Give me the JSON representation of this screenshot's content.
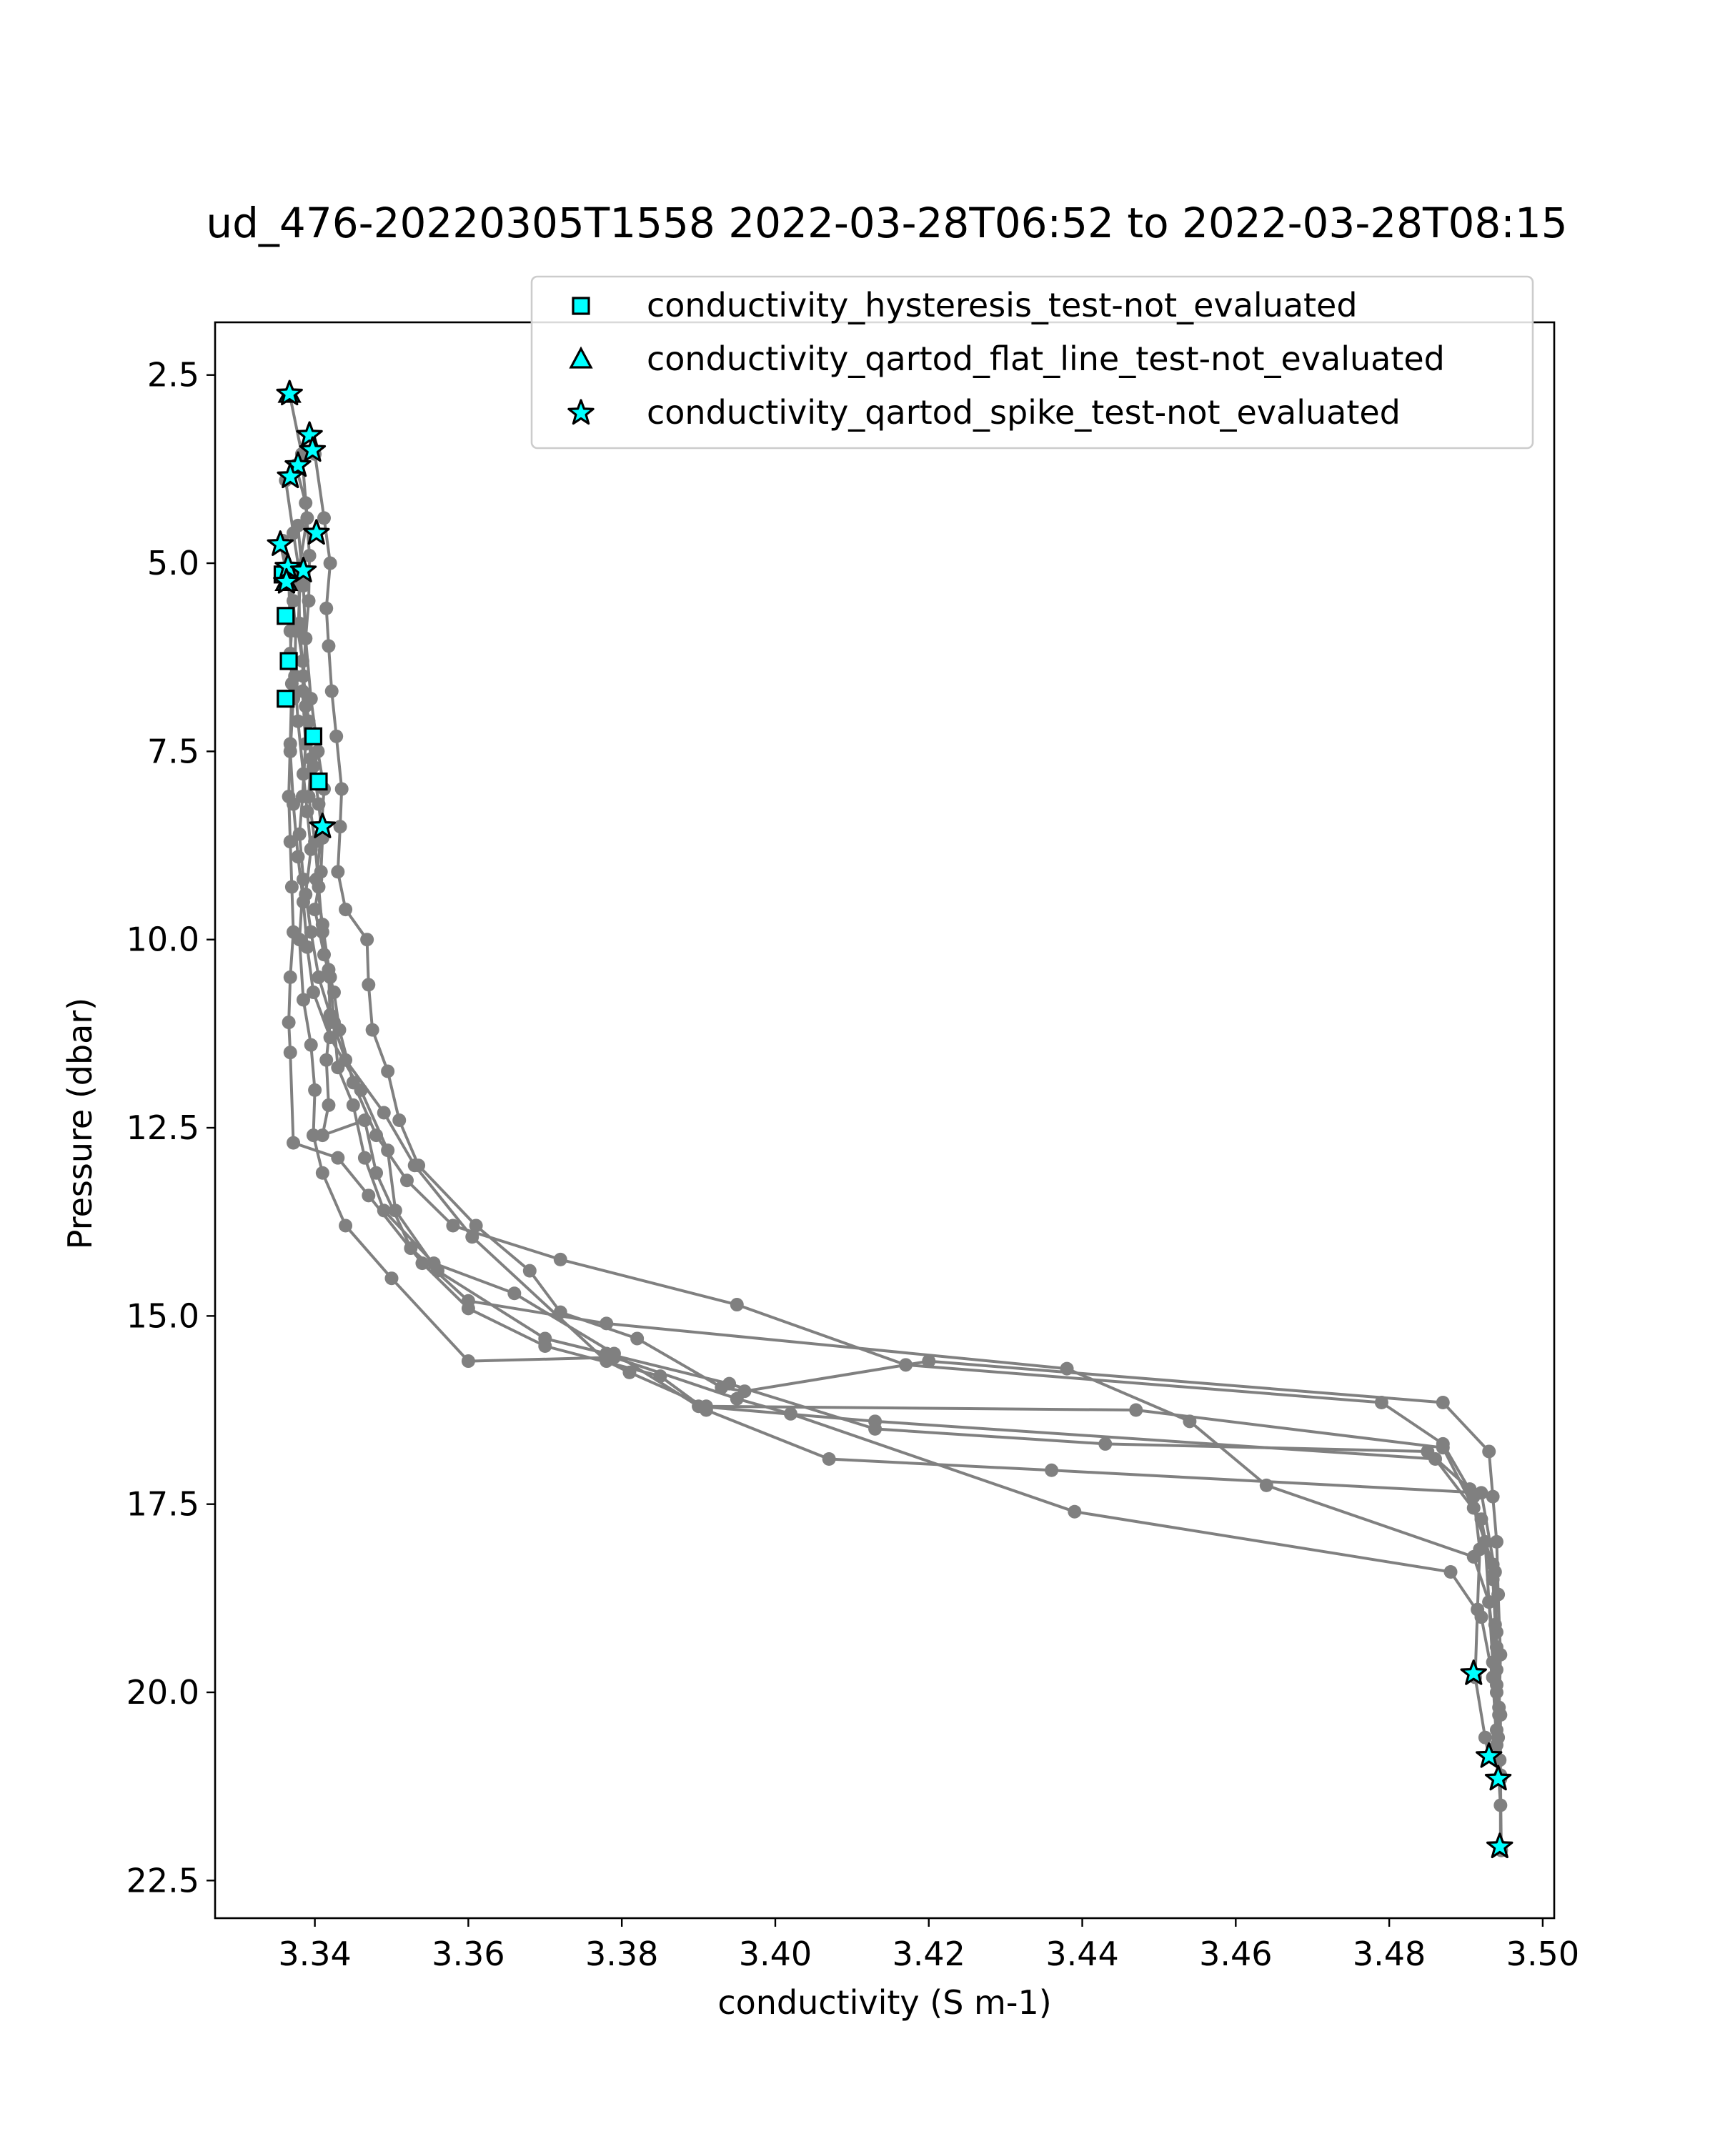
{
  "chart_data": {
    "type": "scatter",
    "title": "ud_476-20220305T1558 2022-03-28T06:52 to 2022-03-28T08:15",
    "xlabel": "conductivity (S m-1)",
    "ylabel": "Pressure (dbar)",
    "xlim": [
      3.327,
      3.5015
    ],
    "ylim": [
      23.0,
      1.8
    ],
    "y_inverted": true,
    "grid": false,
    "legend_position": "upper right",
    "x_ticks": [
      "3.34",
      "3.36",
      "3.38",
      "3.40",
      "3.42",
      "3.44",
      "3.46",
      "3.48",
      "3.50"
    ],
    "y_ticks": [
      "2.5",
      "5.0",
      "7.5",
      "10.0",
      "12.5",
      "15.0",
      "17.5",
      "20.0",
      "22.5"
    ],
    "profile_color": "#808080",
    "profiles": [
      [
        [
          3.3367,
          2.75
        ],
        [
          3.3383,
          3.55
        ],
        [
          3.339,
          4.4
        ],
        [
          3.3379,
          5.1
        ],
        [
          3.338,
          5.8
        ],
        [
          3.3385,
          6.5
        ],
        [
          3.3392,
          7.1
        ],
        [
          3.3398,
          7.7
        ],
        [
          3.3405,
          8.2
        ],
        [
          3.341,
          8.65
        ],
        [
          3.3408,
          9.1
        ],
        [
          3.34,
          9.6
        ],
        [
          3.3412,
          10.2
        ],
        [
          3.3425,
          10.7
        ],
        [
          3.3432,
          11.2
        ],
        [
          3.345,
          11.9
        ],
        [
          3.348,
          12.6
        ],
        [
          3.352,
          13.2
        ],
        [
          3.358,
          13.8
        ],
        [
          3.372,
          14.25
        ],
        [
          3.395,
          14.85
        ],
        [
          3.417,
          15.65
        ],
        [
          3.479,
          16.15
        ],
        [
          3.487,
          16.7
        ],
        [
          3.491,
          17.4
        ],
        [
          3.4918,
          18.1
        ],
        [
          3.4915,
          18.9
        ],
        [
          3.4912,
          19.8
        ],
        [
          3.4925,
          20.6
        ],
        [
          3.493,
          20.85
        ]
      ],
      [
        [
          3.34,
          3.55
        ],
        [
          3.3412,
          4.4
        ],
        [
          3.342,
          5.0
        ],
        [
          3.3415,
          5.6
        ],
        [
          3.3418,
          6.1
        ],
        [
          3.3422,
          6.7
        ],
        [
          3.3428,
          7.3
        ],
        [
          3.3435,
          8.0
        ],
        [
          3.3433,
          8.5
        ],
        [
          3.343,
          9.1
        ],
        [
          3.344,
          9.6
        ],
        [
          3.3468,
          10.0
        ],
        [
          3.347,
          10.6
        ],
        [
          3.3475,
          11.2
        ],
        [
          3.3495,
          11.75
        ],
        [
          3.351,
          12.4
        ],
        [
          3.3535,
          13.0
        ],
        [
          3.361,
          13.8
        ],
        [
          3.368,
          14.4
        ],
        [
          3.372,
          14.95
        ],
        [
          3.382,
          15.3
        ],
        [
          3.393,
          15.95
        ],
        [
          3.396,
          16.0
        ],
        [
          3.42,
          15.6
        ],
        [
          3.487,
          16.15
        ],
        [
          3.493,
          16.8
        ],
        [
          3.4935,
          17.4
        ],
        [
          3.494,
          18.0
        ],
        [
          3.4942,
          18.7
        ],
        [
          3.4945,
          19.5
        ],
        [
          3.4943,
          20.3
        ],
        [
          3.4945,
          21.15
        ]
      ],
      [
        [
          3.3362,
          3.9
        ],
        [
          3.3372,
          4.6
        ],
        [
          3.3381,
          5.2
        ],
        [
          3.3378,
          5.9
        ],
        [
          3.3384,
          6.3
        ],
        [
          3.3388,
          6.9
        ],
        [
          3.3395,
          7.6
        ],
        [
          3.3392,
          8.1
        ],
        [
          3.34,
          8.7
        ],
        [
          3.3405,
          9.3
        ],
        [
          3.341,
          9.9
        ],
        [
          3.3418,
          10.4
        ],
        [
          3.342,
          11.1
        ],
        [
          3.3415,
          11.6
        ],
        [
          3.3418,
          12.2
        ],
        [
          3.341,
          12.6
        ],
        [
          3.3465,
          12.4
        ],
        [
          3.348,
          13.1
        ],
        [
          3.3525,
          14.1
        ],
        [
          3.36,
          14.8
        ],
        [
          3.378,
          15.1
        ],
        [
          3.438,
          15.7
        ],
        [
          3.454,
          16.4
        ],
        [
          3.464,
          17.25
        ],
        [
          3.491,
          18.2
        ],
        [
          3.493,
          18.8
        ],
        [
          3.494,
          19.7
        ],
        [
          3.4945,
          20.3
        ],
        [
          3.4945,
          21.1
        ],
        [
          3.4946,
          22.1
        ]
      ],
      [
        [
          3.3358,
          4.7
        ],
        [
          3.337,
          5.3
        ],
        [
          3.3375,
          5.9
        ],
        [
          3.3374,
          6.5
        ],
        [
          3.3378,
          7.1
        ],
        [
          3.3385,
          7.8
        ],
        [
          3.339,
          8.3
        ],
        [
          3.3395,
          8.8
        ],
        [
          3.3388,
          9.4
        ],
        [
          3.3395,
          9.9
        ],
        [
          3.3405,
          10.5
        ],
        [
          3.342,
          11.0
        ],
        [
          3.344,
          11.6
        ],
        [
          3.349,
          12.3
        ],
        [
          3.353,
          13.0
        ],
        [
          3.3605,
          13.95
        ],
        [
          3.378,
          15.6
        ],
        [
          3.381,
          15.75
        ],
        [
          3.391,
          16.2
        ],
        [
          3.447,
          16.25
        ],
        [
          3.487,
          16.75
        ],
        [
          3.491,
          17.55
        ],
        [
          3.4935,
          18.3
        ],
        [
          3.4938,
          19.1
        ],
        [
          3.494,
          19.9
        ],
        [
          3.4942,
          20.6
        ]
      ],
      [
        [
          3.3375,
          3.7
        ],
        [
          3.3388,
          4.2
        ],
        [
          3.3393,
          4.9
        ],
        [
          3.3392,
          5.5
        ],
        [
          3.3388,
          6.0
        ],
        [
          3.3395,
          6.8
        ],
        [
          3.3404,
          7.5
        ],
        [
          3.3412,
          8.0
        ],
        [
          3.3408,
          8.6
        ],
        [
          3.3402,
          9.2
        ],
        [
          3.341,
          9.8
        ],
        [
          3.342,
          10.5
        ],
        [
          3.3425,
          11.1
        ],
        [
          3.343,
          11.7
        ],
        [
          3.345,
          12.2
        ],
        [
          3.3465,
          12.9
        ],
        [
          3.349,
          13.6
        ],
        [
          3.3555,
          14.3
        ],
        [
          3.366,
          14.7
        ],
        [
          3.379,
          15.5
        ],
        [
          3.39,
          16.2
        ],
        [
          3.413,
          16.4
        ],
        [
          3.486,
          16.9
        ],
        [
          3.492,
          17.7
        ],
        [
          3.4935,
          18.5
        ],
        [
          3.494,
          19.4
        ],
        [
          3.4943,
          20.2
        ],
        [
          3.4944,
          20.9
        ]
      ],
      [
        [
          3.3355,
          4.75
        ],
        [
          3.3372,
          5.5
        ],
        [
          3.3368,
          6.2
        ],
        [
          3.3372,
          6.8
        ],
        [
          3.3368,
          7.5
        ],
        [
          3.3372,
          8.2
        ],
        [
          3.3378,
          8.9
        ],
        [
          3.3385,
          9.5
        ],
        [
          3.339,
          10.1
        ],
        [
          3.3398,
          10.7
        ],
        [
          3.342,
          11.3
        ],
        [
          3.346,
          12.0
        ],
        [
          3.3495,
          12.8
        ],
        [
          3.3505,
          13.6
        ],
        [
          3.356,
          14.4
        ],
        [
          3.37,
          15.3
        ],
        [
          3.378,
          15.5
        ],
        [
          3.394,
          15.9
        ],
        [
          3.413,
          16.5
        ],
        [
          3.443,
          16.7
        ],
        [
          3.485,
          16.8
        ],
        [
          3.4905,
          17.3
        ],
        [
          3.4925,
          18.0
        ],
        [
          3.493,
          18.8
        ],
        [
          3.4935,
          19.6
        ],
        [
          3.494,
          20.5
        ]
      ],
      [
        [
          3.3366,
          5.2
        ],
        [
          3.3368,
          5.9
        ],
        [
          3.337,
          6.6
        ],
        [
          3.3368,
          7.4
        ],
        [
          3.3366,
          8.1
        ],
        [
          3.3368,
          8.7
        ],
        [
          3.337,
          9.3
        ],
        [
          3.3372,
          9.9
        ],
        [
          3.3368,
          10.5
        ],
        [
          3.3366,
          11.1
        ],
        [
          3.3368,
          11.5
        ],
        [
          3.3372,
          12.7
        ],
        [
          3.343,
          12.9
        ],
        [
          3.347,
          13.4
        ],
        [
          3.354,
          14.3
        ],
        [
          3.36,
          14.9
        ],
        [
          3.37,
          15.4
        ],
        [
          3.385,
          15.8
        ],
        [
          3.391,
          16.25
        ],
        [
          3.407,
          16.9
        ],
        [
          3.436,
          17.05
        ],
        [
          3.492,
          17.35
        ],
        [
          3.4938,
          18.4
        ],
        [
          3.494,
          19.2
        ],
        [
          3.494,
          20.0
        ],
        [
          3.4942,
          20.9
        ]
      ],
      [
        [
          3.3378,
          4.5
        ],
        [
          3.3385,
          5.3
        ],
        [
          3.3388,
          6.0
        ],
        [
          3.3384,
          6.7
        ],
        [
          3.3388,
          7.4
        ],
        [
          3.3384,
          8.1
        ],
        [
          3.338,
          8.6
        ],
        [
          3.3385,
          9.2
        ],
        [
          3.338,
          10.0
        ],
        [
          3.3385,
          10.8
        ],
        [
          3.3395,
          11.4
        ],
        [
          3.34,
          12.0
        ],
        [
          3.3398,
          12.6
        ],
        [
          3.341,
          13.1
        ],
        [
          3.344,
          13.8
        ],
        [
          3.35,
          14.5
        ],
        [
          3.36,
          15.6
        ],
        [
          3.379,
          15.55
        ],
        [
          3.395,
          16.1
        ],
        [
          3.402,
          16.3
        ],
        [
          3.439,
          17.6
        ],
        [
          3.488,
          18.4
        ],
        [
          3.492,
          19.0
        ],
        [
          3.4935,
          19.8
        ],
        [
          3.494,
          20.7
        ],
        [
          3.4945,
          21.5
        ],
        [
          3.4945,
          22.05
        ]
      ]
    ],
    "series": [
      {
        "name": "conductivity_hysteresis_test-not_evaluated",
        "marker": "square",
        "color": "#00ffff",
        "points": [
          [
            3.3358,
            5.15
          ],
          [
            3.3362,
            5.7
          ],
          [
            3.3366,
            6.3
          ],
          [
            3.3362,
            6.8
          ],
          [
            3.3398,
            7.3
          ],
          [
            3.3405,
            7.9
          ]
        ]
      },
      {
        "name": "conductivity_qartod_flat_line_test-not_evaluated",
        "marker": "triangle",
        "color": "#00ffff",
        "points": [
          [
            3.3367,
            2.75
          ],
          [
            3.3363,
            5.25
          ]
        ]
      },
      {
        "name": "conductivity_qartod_spike_test-not_evaluated",
        "marker": "star",
        "color": "#00ffff",
        "points": [
          [
            3.3367,
            2.75
          ],
          [
            3.3393,
            3.3
          ],
          [
            3.3397,
            3.5
          ],
          [
            3.3378,
            3.7
          ],
          [
            3.3368,
            3.85
          ],
          [
            3.3402,
            4.6
          ],
          [
            3.3355,
            4.75
          ],
          [
            3.3365,
            5.05
          ],
          [
            3.3385,
            5.1
          ],
          [
            3.3363,
            5.25
          ],
          [
            3.341,
            8.5
          ],
          [
            3.491,
            19.75
          ],
          [
            3.493,
            20.85
          ],
          [
            3.4942,
            21.15
          ],
          [
            3.4944,
            22.05
          ]
        ]
      }
    ]
  }
}
